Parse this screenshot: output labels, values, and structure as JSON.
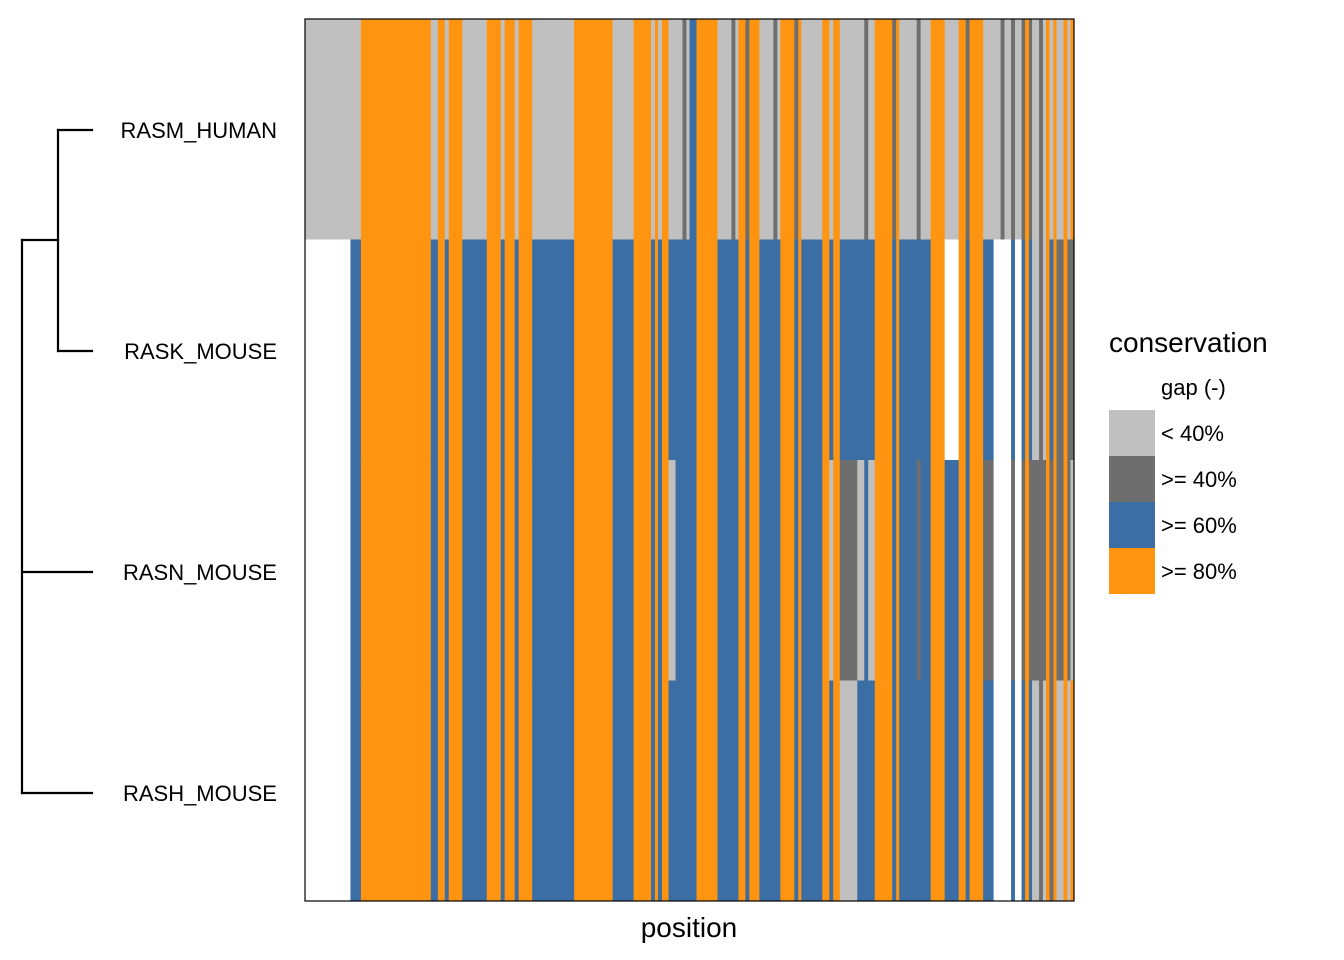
{
  "chart_data": {
    "type": "heatmap",
    "xlabel": "position",
    "rows": [
      "RASM_HUMAN",
      "RASK_MOUSE",
      "RASN_MOUSE",
      "RASH_MOUSE"
    ],
    "dendrogram": {
      "merge_order": [
        [
          "RASM_HUMAN",
          "RASK_MOUSE"
        ],
        [
          "RASN_MOUSE",
          "RASH_MOUSE"
        ]
      ]
    },
    "legend": {
      "title": "conservation",
      "entries": [
        {
          "key": "gap",
          "label": "gap (-)",
          "color": "#ffffff"
        },
        {
          "key": "lt40",
          "label": "< 40%",
          "color": "#c0c0c0"
        },
        {
          "key": "ge40",
          "label": ">= 40%",
          "color": "#6e6e6e"
        },
        {
          "key": "ge60",
          "label": ">= 60%",
          "color": "#3a6ea5"
        },
        {
          "key": "ge80",
          "label": ">= 80%",
          "color": "#ff9410"
        }
      ]
    },
    "palette": [
      "#ffffff",
      "#c0c0c0",
      "#6e6e6e",
      "#3a6ea5",
      "#ff9410"
    ],
    "n_positions": 220,
    "columns": [
      [
        0,
        13,
        [
          1,
          0,
          0,
          0
        ]
      ],
      [
        13,
        3,
        [
          1,
          3,
          3,
          3
        ]
      ],
      [
        16,
        8,
        [
          4,
          4,
          4,
          4
        ]
      ],
      [
        24,
        12,
        [
          4,
          4,
          4,
          4
        ]
      ],
      [
        36,
        3,
        [
          1,
          3,
          3,
          3
        ]
      ],
      [
        39,
        6,
        [
          4,
          4,
          4,
          4
        ]
      ],
      [
        45,
        7,
        [
          1,
          3,
          3,
          3
        ]
      ],
      [
        52,
        13,
        [
          4,
          4,
          4,
          4
        ]
      ],
      [
        65,
        12,
        [
          1,
          3,
          3,
          3
        ]
      ],
      [
        77,
        11,
        [
          4,
          4,
          4,
          4
        ]
      ],
      [
        88,
        6,
        [
          1,
          3,
          3,
          3
        ]
      ],
      [
        94,
        10,
        [
          4,
          4,
          4,
          4
        ]
      ],
      [
        104,
        2,
        [
          1,
          3,
          1,
          3
        ]
      ],
      [
        106,
        4,
        [
          1,
          3,
          3,
          3
        ]
      ],
      [
        110,
        2,
        [
          3,
          3,
          3,
          3
        ]
      ],
      [
        112,
        6,
        [
          4,
          4,
          4,
          4
        ]
      ],
      [
        118,
        6,
        [
          1,
          3,
          3,
          3
        ]
      ],
      [
        124,
        6,
        [
          4,
          4,
          4,
          4
        ]
      ],
      [
        130,
        6,
        [
          1,
          3,
          3,
          3
        ]
      ],
      [
        136,
        6,
        [
          4,
          4,
          4,
          4
        ]
      ],
      [
        142,
        6,
        [
          1,
          3,
          3,
          3
        ]
      ],
      [
        148,
        5,
        [
          4,
          4,
          4,
          4
        ]
      ],
      [
        153,
        5,
        [
          1,
          3,
          2,
          1
        ]
      ],
      [
        158,
        5,
        [
          1,
          3,
          1,
          3
        ]
      ],
      [
        163,
        7,
        [
          4,
          4,
          4,
          4
        ]
      ],
      [
        170,
        9,
        [
          1,
          3,
          3,
          3
        ]
      ],
      [
        179,
        4,
        [
          4,
          4,
          4,
          4
        ]
      ],
      [
        183,
        4,
        [
          1,
          0,
          3,
          3
        ]
      ],
      [
        187,
        7,
        [
          4,
          4,
          4,
          4
        ]
      ],
      [
        194,
        3,
        [
          1,
          3,
          2,
          3
        ]
      ],
      [
        197,
        8,
        [
          1,
          0,
          0,
          0
        ]
      ],
      [
        205,
        3,
        [
          2,
          3,
          2,
          3
        ]
      ],
      [
        208,
        4,
        [
          1,
          1,
          2,
          1
        ]
      ],
      [
        212,
        3,
        [
          4,
          4,
          4,
          4
        ]
      ],
      [
        215,
        5,
        [
          1,
          2,
          2,
          1
        ]
      ]
    ],
    "stripes": [
      [
        38,
        [
          4,
          4,
          4,
          4
        ]
      ],
      [
        40,
        [
          1,
          3,
          3,
          3
        ]
      ],
      [
        56,
        [
          1,
          3,
          3,
          3
        ]
      ],
      [
        60,
        [
          1,
          3,
          3,
          3
        ]
      ],
      [
        92,
        [
          1,
          3,
          3,
          3
        ]
      ],
      [
        99,
        [
          1,
          3,
          3,
          3
        ]
      ],
      [
        101,
        [
          1,
          3,
          3,
          3
        ]
      ],
      [
        108,
        [
          2,
          3,
          3,
          3
        ]
      ],
      [
        122,
        [
          2,
          3,
          3,
          3
        ]
      ],
      [
        126,
        [
          2,
          3,
          3,
          3
        ]
      ],
      [
        134,
        [
          2,
          3,
          3,
          3
        ]
      ],
      [
        140,
        [
          2,
          3,
          3,
          3
        ]
      ],
      [
        150,
        [
          1,
          3,
          1,
          3
        ]
      ],
      [
        160,
        [
          2,
          3,
          3,
          3
        ]
      ],
      [
        168,
        [
          2,
          3,
          3,
          3
        ]
      ],
      [
        175,
        [
          2,
          3,
          2,
          3
        ]
      ],
      [
        189,
        [
          2,
          3,
          3,
          3
        ]
      ],
      [
        199,
        [
          2,
          0,
          0,
          0
        ]
      ],
      [
        202,
        [
          2,
          3,
          2,
          3
        ]
      ],
      [
        206,
        [
          4,
          4,
          4,
          4
        ]
      ],
      [
        210,
        [
          2,
          2,
          2,
          2
        ]
      ],
      [
        213,
        [
          1,
          3,
          2,
          2
        ]
      ],
      [
        217,
        [
          4,
          4,
          4,
          4
        ]
      ],
      [
        219,
        [
          4,
          2,
          1,
          4
        ]
      ]
    ]
  }
}
